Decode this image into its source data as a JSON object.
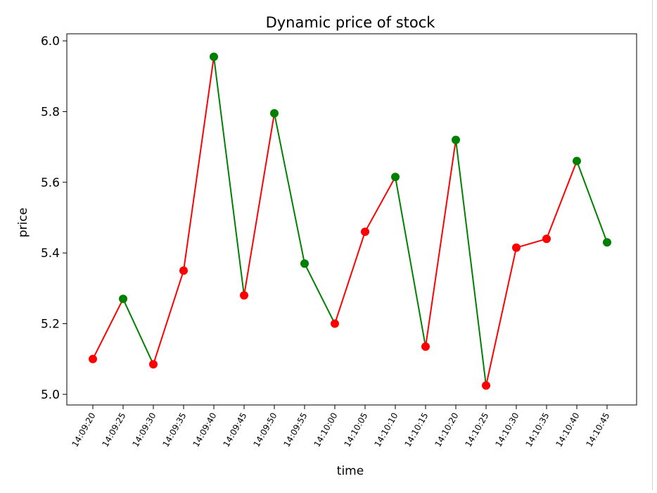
{
  "chart_data": {
    "type": "line",
    "title": "Dynamic price of stock",
    "xlabel": "time",
    "ylabel": "price",
    "ylim": [
      4.97,
      6.02
    ],
    "yticks": [
      "5.0",
      "5.2",
      "5.4",
      "5.6",
      "5.8",
      "6.0"
    ],
    "categories": [
      "14:09:20",
      "14:09:25",
      "14:09:30",
      "14:09:35",
      "14:09:40",
      "14:09:45",
      "14:09:50",
      "14:09:55",
      "14:10:00",
      "14:10:05",
      "14:10:10",
      "14:10:15",
      "14:10:20",
      "14:10:25",
      "14:10:30",
      "14:10:35",
      "14:10:40",
      "14:10:45"
    ],
    "values": [
      5.1,
      5.27,
      5.085,
      5.35,
      5.955,
      5.28,
      5.795,
      5.37,
      5.2,
      5.46,
      5.615,
      5.135,
      5.72,
      5.025,
      5.415,
      5.44,
      5.66,
      5.43
    ],
    "grid": false,
    "colors": {
      "up": "#ff0000",
      "down": "#008000"
    }
  }
}
